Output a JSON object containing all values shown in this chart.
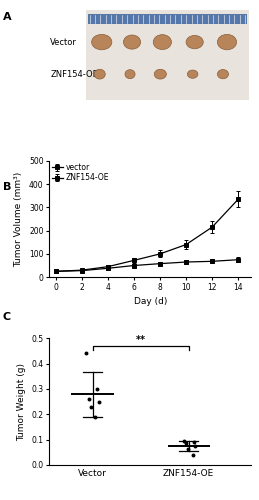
{
  "panel_A_label": "A",
  "panel_B_label": "B",
  "panel_C_label": "C",
  "line_color": "black",
  "marker_style": "s",
  "marker_size": 3,
  "days": [
    0,
    2,
    4,
    6,
    8,
    10,
    12,
    14
  ],
  "vector_volume": [
    25,
    30,
    45,
    72,
    100,
    140,
    215,
    335
  ],
  "vector_volume_err": [
    5,
    5,
    8,
    10,
    15,
    18,
    25,
    35
  ],
  "znf_volume": [
    25,
    28,
    38,
    50,
    58,
    65,
    68,
    75
  ],
  "znf_volume_err": [
    4,
    4,
    6,
    8,
    8,
    8,
    8,
    10
  ],
  "volume_ylim": [
    0,
    500
  ],
  "volume_yticks": [
    0,
    100,
    200,
    300,
    400,
    500
  ],
  "volume_xlabel": "Day (d)",
  "volume_ylabel": "Tumor Volume (mm³)",
  "legend_vector": "vector",
  "legend_znf": "ZNF154-OE",
  "weight_ylabel": "Tumor Weight (g)",
  "weight_ylim": [
    0.0,
    0.5
  ],
  "weight_yticks": [
    0.0,
    0.1,
    0.2,
    0.3,
    0.4,
    0.5
  ],
  "weight_categories": [
    "Vector",
    "ZNF154-OE"
  ],
  "vector_weight_points": [
    0.44,
    0.3,
    0.26,
    0.25,
    0.23,
    0.19
  ],
  "vector_weight_mean": 0.278,
  "vector_weight_sd": 0.09,
  "znf_weight_points": [
    0.095,
    0.09,
    0.085,
    0.075,
    0.065,
    0.04
  ],
  "znf_weight_mean": 0.075,
  "znf_weight_sd": 0.02,
  "sig_label": "**",
  "background_color": "#ffffff",
  "font_size": 6.5,
  "label_font_size": 8,
  "panel_A_bg": "#f0ede8",
  "ruler_color": "#5577aa",
  "tumor_color": "#b8855a",
  "tumor_edge": "#8a5e3a"
}
